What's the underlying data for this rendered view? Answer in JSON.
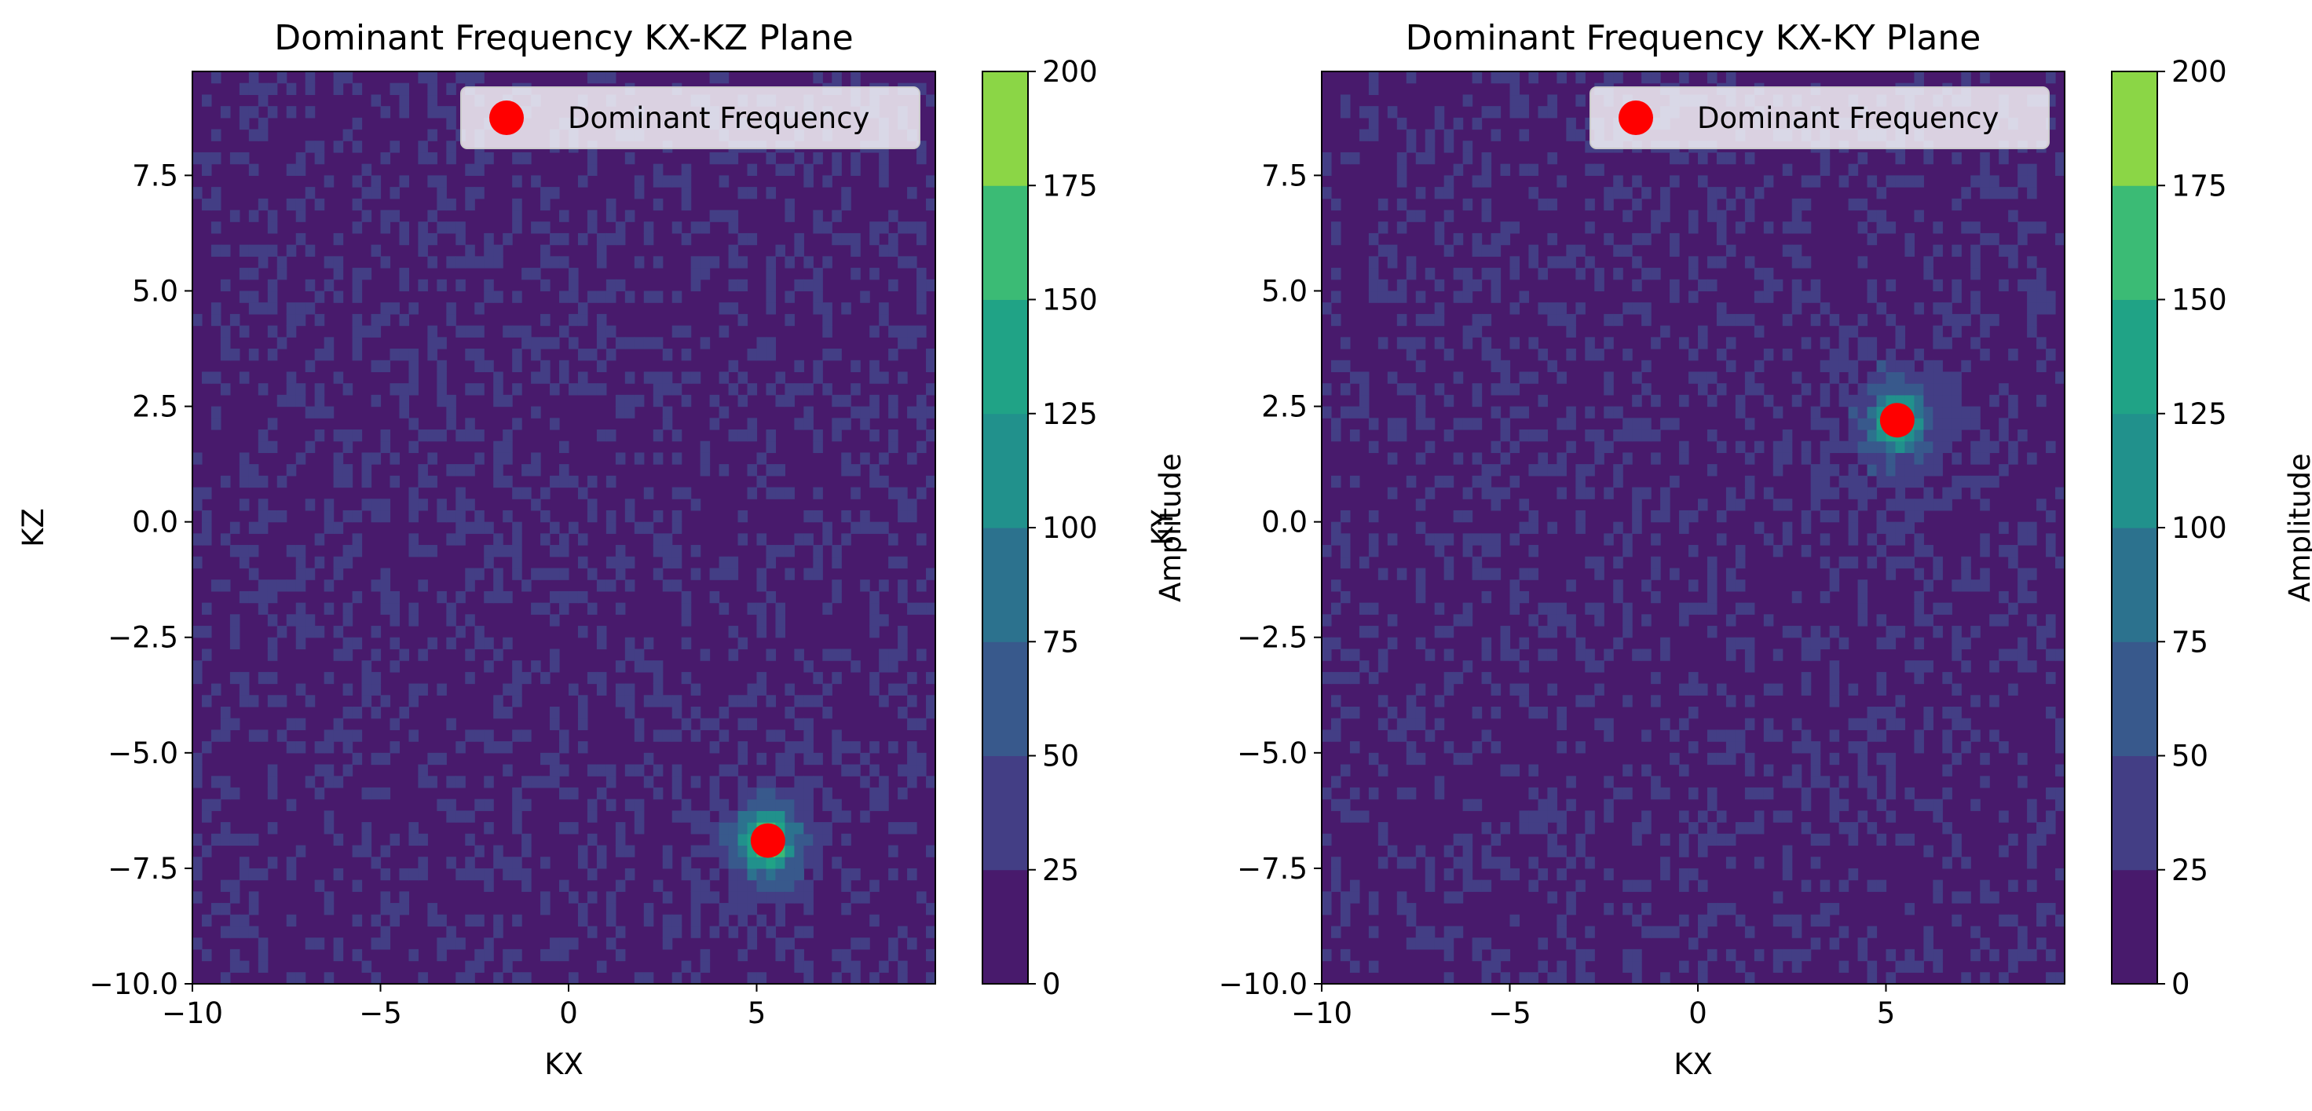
{
  "chart_data": [
    {
      "type": "heatmap",
      "title": "Dominant Frequency KX-KZ Plane",
      "xlabel": "KX",
      "ylabel": "KZ",
      "xlim": [
        -10,
        9.75
      ],
      "ylim": [
        -10,
        9.75
      ],
      "x_ticks": [
        -10,
        -5,
        0,
        5
      ],
      "y_ticks": [
        -10,
        -7.5,
        -5,
        -2.5,
        0,
        2.5,
        5,
        7.5
      ],
      "x_tick_labels": [
        "−10",
        "−5",
        "0",
        "5"
      ],
      "y_tick_labels": [
        "−10.0",
        "−7.5",
        "−5.0",
        "−2.5",
        "0.0",
        "2.5",
        "5.0",
        "7.5"
      ],
      "colorbar": {
        "label": "Amplitude",
        "range": [
          0,
          200
        ],
        "ticks": [
          0,
          25,
          50,
          75,
          100,
          125,
          150,
          175,
          200
        ],
        "tick_labels": [
          "0",
          "25",
          "50",
          "75",
          "100",
          "125",
          "150",
          "175",
          "200"
        ],
        "levels": [
          0,
          25,
          50,
          75,
          100,
          125,
          150,
          175,
          200
        ],
        "level_colors": [
          "#481a6c",
          "#433e85",
          "#38598c",
          "#2c728e",
          "#21918c",
          "#20a386",
          "#3bbb75",
          "#8bd646",
          "#d8e219"
        ],
        "colormap": "viridis"
      },
      "peak": {
        "kx": 5.3,
        "k2": -6.9,
        "amplitude": 150
      },
      "marker": {
        "label": "Dominant Frequency",
        "x": 5.3,
        "y": -6.9,
        "color": "#ff0000"
      },
      "legend": {
        "position": "top-right",
        "entries": [
          "Dominant Frequency"
        ]
      },
      "grid": false
    },
    {
      "type": "heatmap",
      "title": "Dominant Frequency KX-KY Plane",
      "xlabel": "KX",
      "ylabel": "KY",
      "xlim": [
        -10,
        9.75
      ],
      "ylim": [
        -10,
        9.75
      ],
      "x_ticks": [
        -10,
        -5,
        0,
        5
      ],
      "y_ticks": [
        -10,
        -7.5,
        -5,
        -2.5,
        0,
        2.5,
        5,
        7.5
      ],
      "x_tick_labels": [
        "−10",
        "−5",
        "0",
        "5"
      ],
      "y_tick_labels": [
        "−10.0",
        "−7.5",
        "−5.0",
        "−2.5",
        "0.0",
        "2.5",
        "5.0",
        "7.5"
      ],
      "colorbar": {
        "label": "Amplitude",
        "range": [
          0,
          200
        ],
        "ticks": [
          0,
          25,
          50,
          75,
          100,
          125,
          150,
          175,
          200
        ],
        "tick_labels": [
          "0",
          "25",
          "50",
          "75",
          "100",
          "125",
          "150",
          "175",
          "200"
        ],
        "levels": [
          0,
          25,
          50,
          75,
          100,
          125,
          150,
          175,
          200
        ],
        "level_colors": [
          "#481a6c",
          "#433e85",
          "#38598c",
          "#2c728e",
          "#21918c",
          "#20a386",
          "#3bbb75",
          "#8bd646",
          "#d8e219"
        ],
        "colormap": "viridis"
      },
      "peak": {
        "kx": 5.3,
        "k2": 2.2,
        "amplitude": 120
      },
      "marker": {
        "label": "Dominant Frequency",
        "x": 5.3,
        "y": 2.2,
        "color": "#ff0000"
      },
      "legend": {
        "position": "top-right",
        "entries": [
          "Dominant Frequency"
        ]
      },
      "grid": false
    }
  ]
}
